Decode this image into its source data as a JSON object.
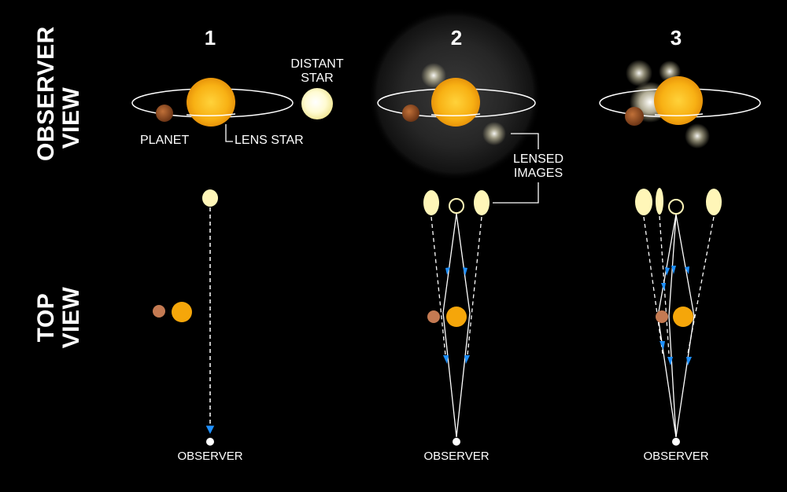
{
  "row_labels": {
    "observer_view": [
      "OBSERVER",
      "VIEW"
    ],
    "top_view": [
      "TOP",
      "VIEW"
    ]
  },
  "panels": [
    "1",
    "2",
    "3"
  ],
  "labels": {
    "planet": "PLANET",
    "lens_star": "LENS STAR",
    "distant_star": [
      "DISTANT",
      "STAR"
    ],
    "lensed_images": [
      "LENSED",
      "IMAGES"
    ],
    "observer": "OBSERVER"
  },
  "colors": {
    "background": "#000000",
    "lens_star": "#f5a60a",
    "planet": "#a65a28",
    "distant_star": "#fff6b8",
    "light_ray": "#ffffff",
    "arrow": "#1e90ff"
  }
}
